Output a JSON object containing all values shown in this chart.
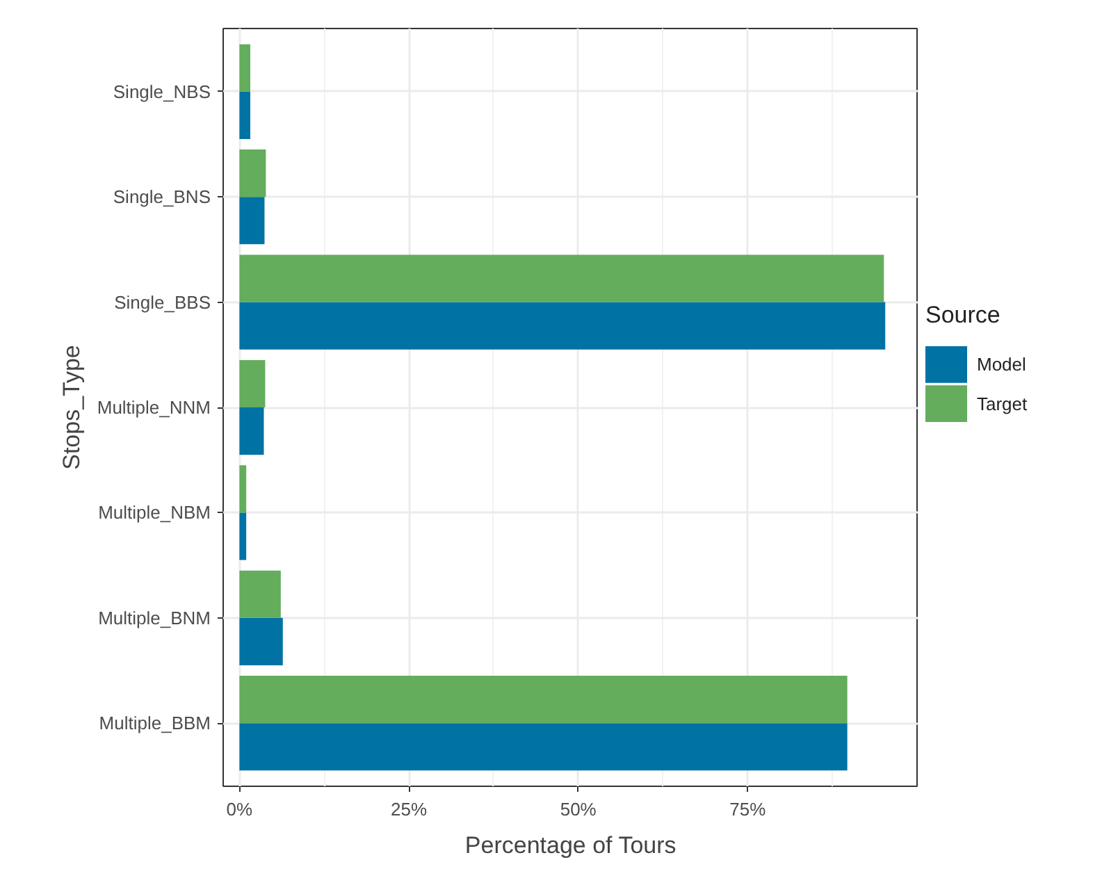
{
  "chart_data": {
    "type": "bar",
    "orientation": "horizontal",
    "xlabel": "Percentage of Tours",
    "ylabel": "Stops_Type",
    "legend_title": "Source",
    "categories": [
      "Single_NBS",
      "Single_BNS",
      "Single_BBS",
      "Multiple_NNM",
      "Multiple_NBM",
      "Multiple_BNM",
      "Multiple_BBM"
    ],
    "series": [
      {
        "name": "Model",
        "color": "#0072a4",
        "values": [
          1.6,
          3.7,
          95.3,
          3.6,
          1.0,
          6.4,
          89.7
        ]
      },
      {
        "name": "Target",
        "color": "#63ad5c",
        "values": [
          1.6,
          3.9,
          95.1,
          3.8,
          1.0,
          6.1,
          89.7
        ]
      }
    ],
    "xlim": [
      -2.4,
      100.2
    ],
    "xticks": [
      {
        "value": 0,
        "label": "0%"
      },
      {
        "value": 25,
        "label": "25%"
      },
      {
        "value": 50,
        "label": "50%"
      },
      {
        "value": 75,
        "label": "75%"
      }
    ],
    "grid": true,
    "legend": "right"
  }
}
